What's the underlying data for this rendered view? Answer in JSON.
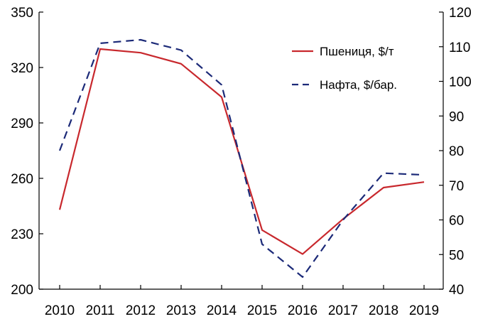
{
  "chart_data": {
    "type": "line",
    "x": [
      "2010",
      "2011",
      "2012",
      "2013",
      "2014",
      "2015",
      "2016",
      "2017",
      "2018",
      "2019"
    ],
    "y_left_lim": [
      200,
      350
    ],
    "y_left_ticks": [
      "200",
      "230",
      "260",
      "290",
      "320",
      "350"
    ],
    "y_right_lim": [
      40,
      120
    ],
    "y_right_ticks": [
      "40",
      "50",
      "60",
      "70",
      "80",
      "90",
      "100",
      "110",
      "120"
    ],
    "grid": false,
    "legend_position": "top-right",
    "series": [
      {
        "name": "Пшениця, $/т",
        "axis": "left",
        "color": "#c8282d",
        "style": "solid",
        "values": [
          243,
          330,
          328,
          322,
          304,
          232,
          219,
          238,
          255,
          258
        ]
      },
      {
        "name": "Нафта, $/бар.",
        "axis": "right",
        "color": "#1c2a78",
        "style": "dashed",
        "values": [
          80,
          111,
          112,
          109,
          99,
          53,
          43.5,
          60,
          73.5,
          73
        ]
      }
    ]
  }
}
